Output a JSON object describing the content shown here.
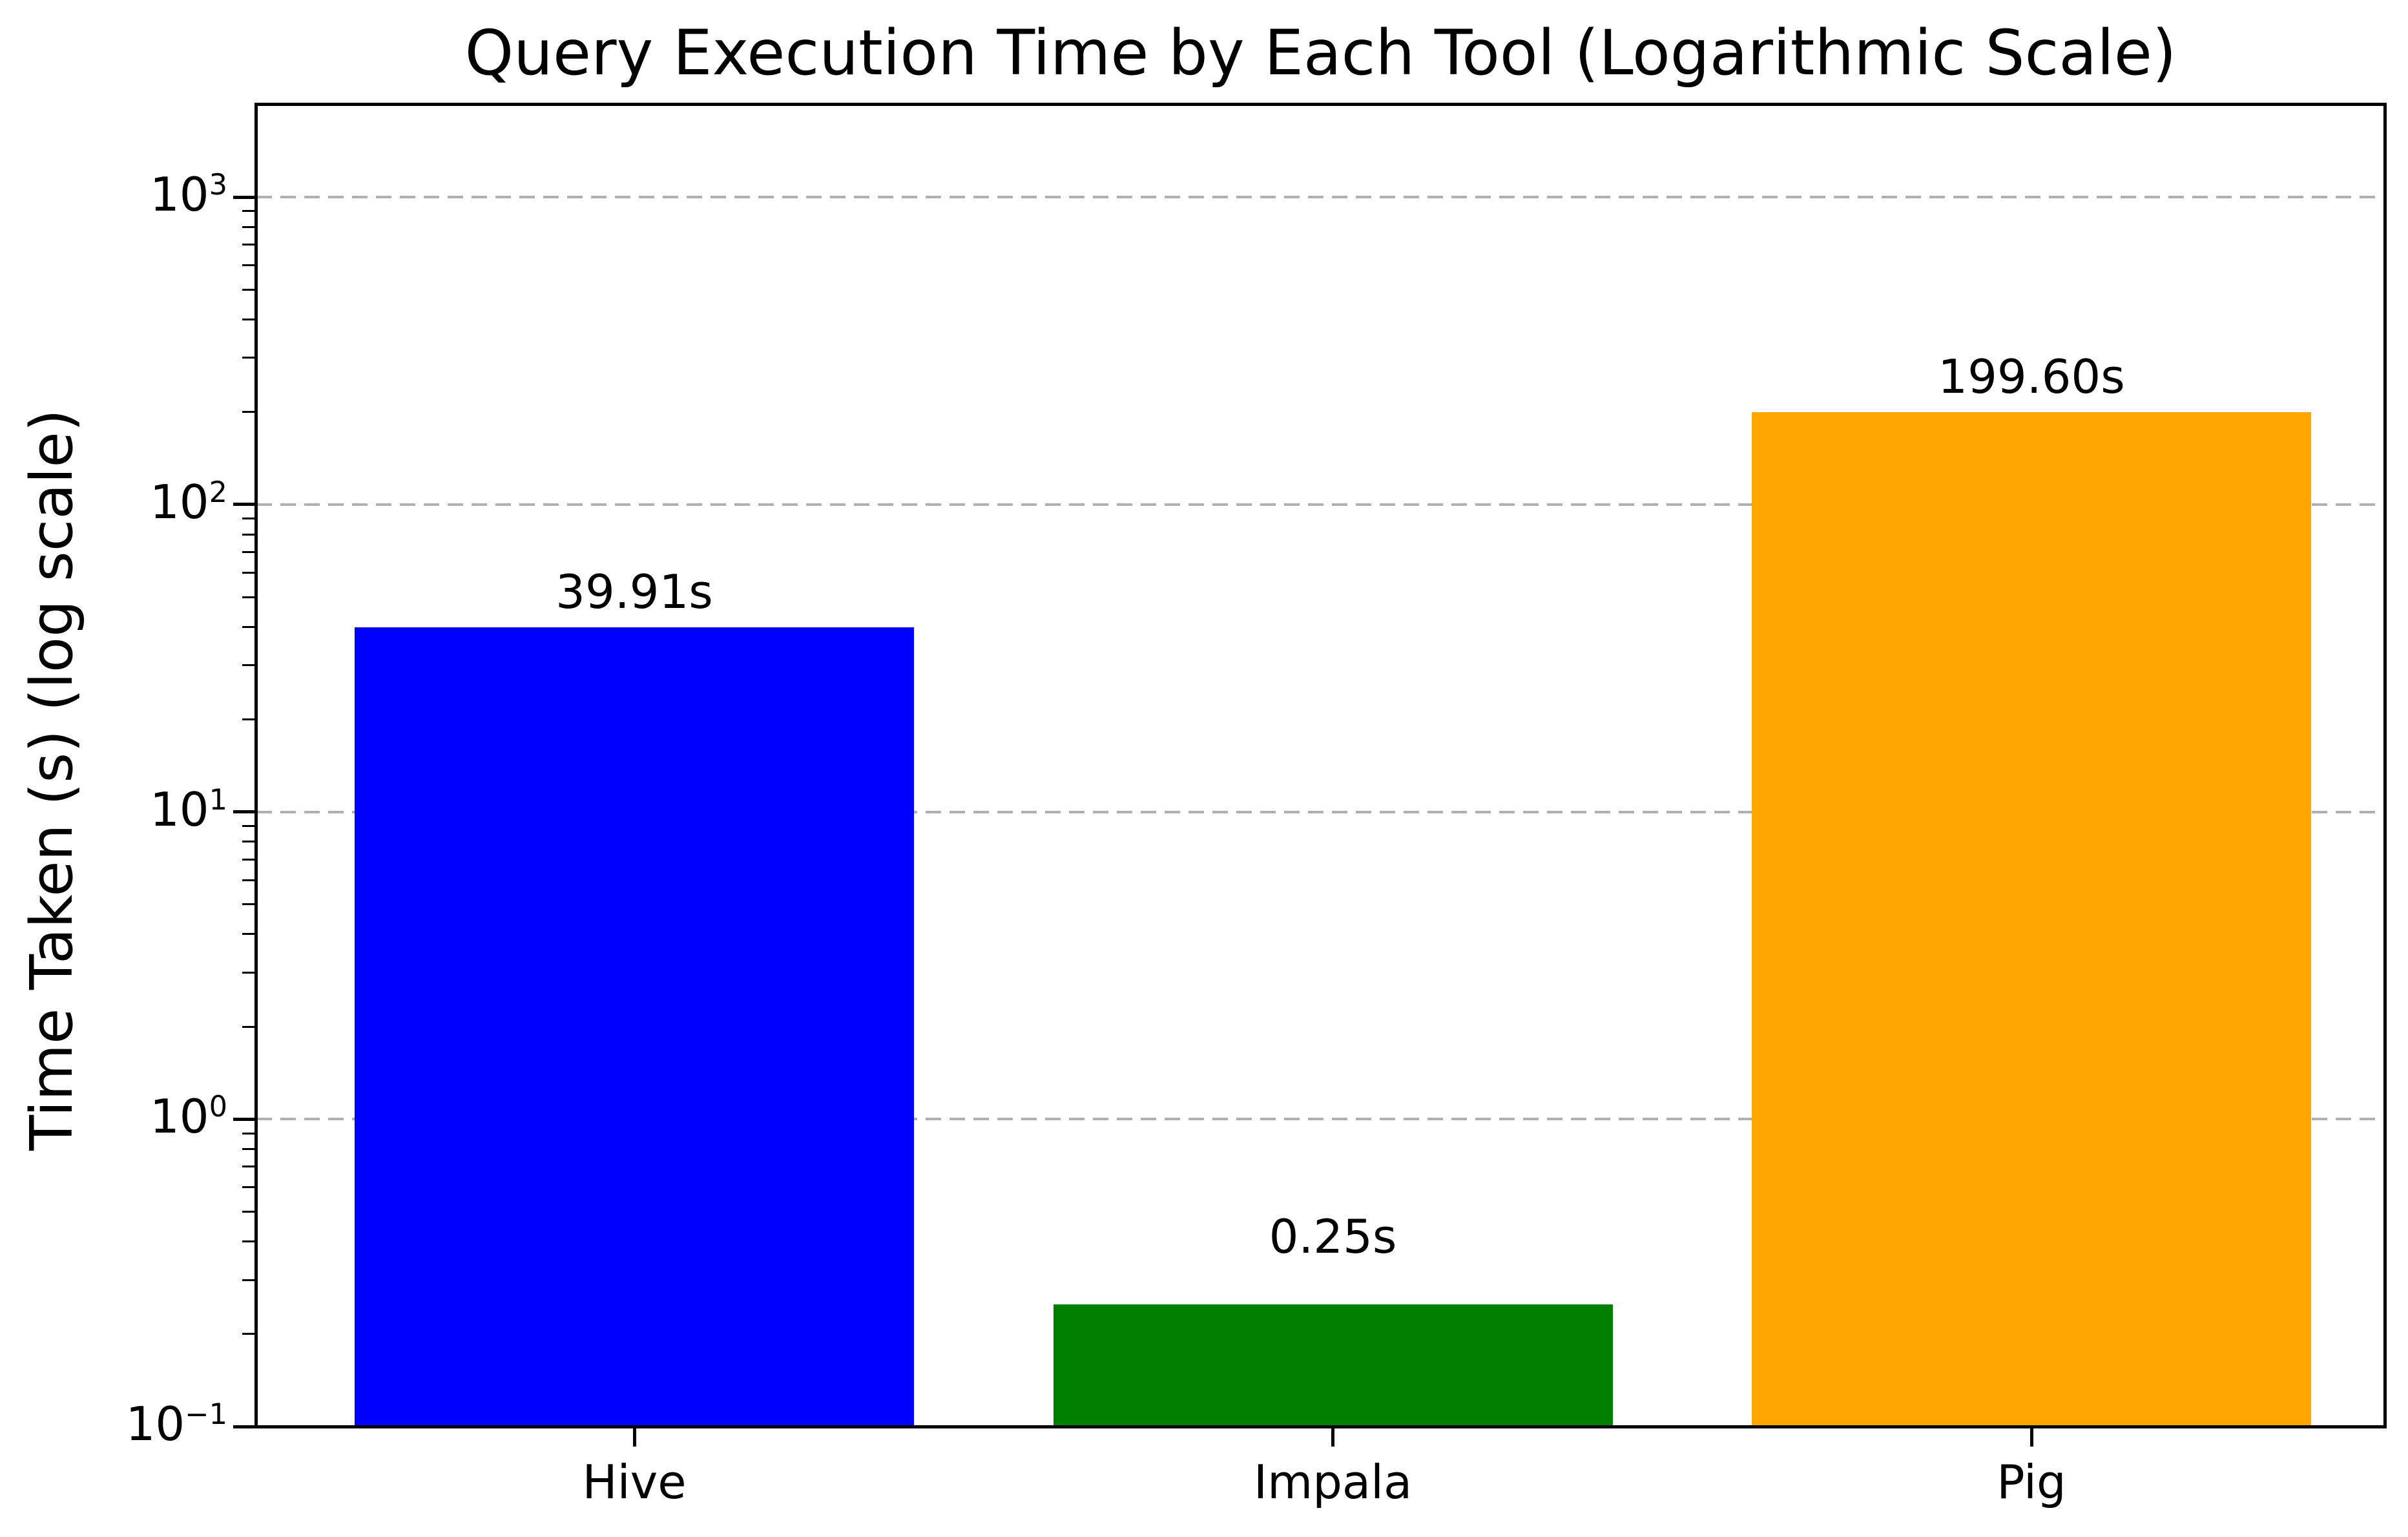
{
  "figure": {
    "background": "#ffffff",
    "text_color": "#000000"
  },
  "chart_data": {
    "type": "bar",
    "title": "Query Execution Time by Each Tool (Logarithmic Scale)",
    "xlabel": "",
    "ylabel": "Time Taken (s) (log scale)",
    "categories": [
      "Hive",
      "Impala",
      "Pig"
    ],
    "values": [
      39.91,
      0.25,
      199.6
    ],
    "bar_value_labels": [
      "39.91s",
      "0.25s",
      "199.60s"
    ],
    "bar_colors": [
      "#0000ff",
      "#008000",
      "#ffa500"
    ],
    "yscale": "log",
    "ylim": [
      0.1,
      2000
    ],
    "yticks": [
      {
        "value": 1000,
        "base": "10",
        "exp": "3"
      },
      {
        "value": 100,
        "base": "10",
        "exp": "2"
      },
      {
        "value": 10,
        "base": "10",
        "exp": "1"
      },
      {
        "value": 1,
        "base": "10",
        "exp": "0"
      },
      {
        "value": 0.1,
        "base": "10",
        "exp": "−1"
      }
    ],
    "grid": {
      "axis": "y",
      "which": "major",
      "linestyle": "dashed",
      "color": "#b0b0b0"
    },
    "legend": null
  }
}
